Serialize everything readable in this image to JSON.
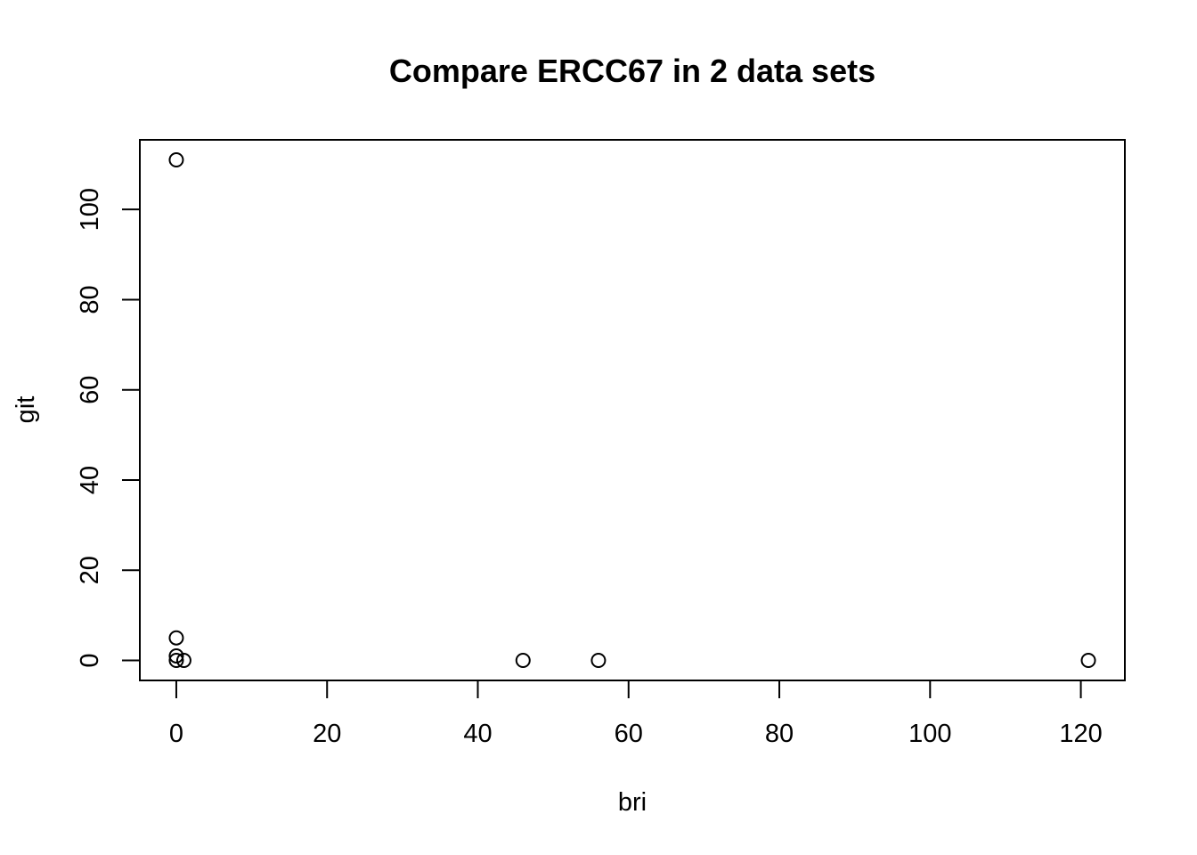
{
  "chart_data": {
    "type": "scatter",
    "title": "Compare ERCC67 in 2 data sets",
    "xlabel": "bri",
    "ylabel": "git",
    "xlim": [
      -4.84,
      125.84
    ],
    "ylim": [
      -4.44,
      115.44
    ],
    "x_ticks": [
      0,
      20,
      40,
      60,
      80,
      100,
      120
    ],
    "y_ticks": [
      0,
      20,
      40,
      60,
      80,
      100
    ],
    "x_tick_labels": [
      "0",
      "20",
      "40",
      "60",
      "80",
      "100",
      "120"
    ],
    "y_tick_labels": [
      "0",
      "20",
      "40",
      "60",
      "80",
      "100"
    ],
    "grid": false,
    "legend": "none",
    "marker": "open-circle",
    "colors": {
      "marker": "#000000",
      "axes": "#000000",
      "background": "#ffffff"
    },
    "points": [
      {
        "x": 0,
        "y": 111
      },
      {
        "x": 0,
        "y": 5
      },
      {
        "x": 0,
        "y": 1
      },
      {
        "x": 0,
        "y": 0
      },
      {
        "x": 1,
        "y": 0
      },
      {
        "x": 46,
        "y": 0
      },
      {
        "x": 56,
        "y": 0
      },
      {
        "x": 121,
        "y": 0
      }
    ]
  }
}
